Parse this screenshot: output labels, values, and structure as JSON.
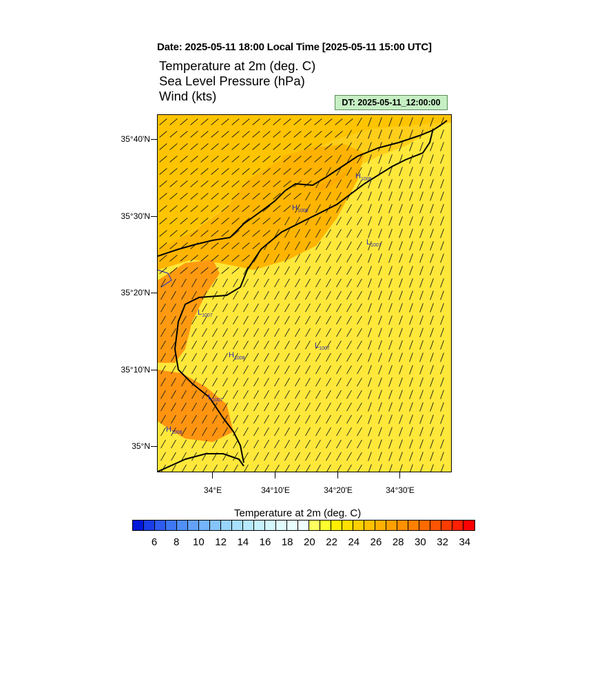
{
  "header": {
    "date_line": "Date: 2025-05-11  18:00 Local Time [2025-05-11  15:00 UTC]",
    "title_lines": [
      "Temperature at 2m   (deg. C)",
      "Sea Level Pressure   (hPa)",
      "Wind   (kts)"
    ],
    "dt_label": "DT: 2025-05-11_12:00:00"
  },
  "map": {
    "lat_labels": [
      "35°40'N",
      "35°30'N",
      "35°20'N",
      "35°10'N",
      "35°N"
    ],
    "lon_labels": [
      "34°E",
      "34°10'E",
      "34°20'E",
      "34°30'E"
    ],
    "pressure_labels": [
      {
        "type": "H",
        "value": "1008"
      },
      {
        "type": "H",
        "value": "1008"
      },
      {
        "type": "L",
        "value": "1007"
      },
      {
        "type": "L",
        "value": "1007"
      },
      {
        "type": "H",
        "value": "1008"
      },
      {
        "type": "L",
        "value": "1007"
      },
      {
        "type": "L",
        "value": "1007"
      },
      {
        "type": "H",
        "value": "1008"
      }
    ],
    "colors": {
      "land_hot": "#ff8c1a",
      "warm": "#ffb000",
      "mild": "#ffd000",
      "sea": "#ffe83a",
      "coast": "#000000",
      "pressure_label": "#2a2ab0"
    }
  },
  "colorbar": {
    "title": "Temperature at 2m  (deg. C)",
    "colors": [
      "#0018d8",
      "#1a3ee8",
      "#2e5cf0",
      "#3f78f4",
      "#4f8ff6",
      "#63a2f8",
      "#74b4fa",
      "#86c4fc",
      "#98d4fc",
      "#a8e0fd",
      "#b8eafe",
      "#c6f2fe",
      "#d4f8ff",
      "#e0fcff",
      "#e8ffff",
      "#f0ffff",
      "#ffff60",
      "#ffff30",
      "#fff000",
      "#ffe000",
      "#ffd000",
      "#ffc000",
      "#ffb000",
      "#ffa000",
      "#ff9000",
      "#ff8000",
      "#ff6a00",
      "#ff5400",
      "#ff3c00",
      "#ff2000",
      "#ff0000"
    ],
    "tick_labels": [
      "6",
      "8",
      "10",
      "12",
      "14",
      "16",
      "18",
      "20",
      "22",
      "24",
      "26",
      "28",
      "30",
      "32",
      "34"
    ]
  }
}
